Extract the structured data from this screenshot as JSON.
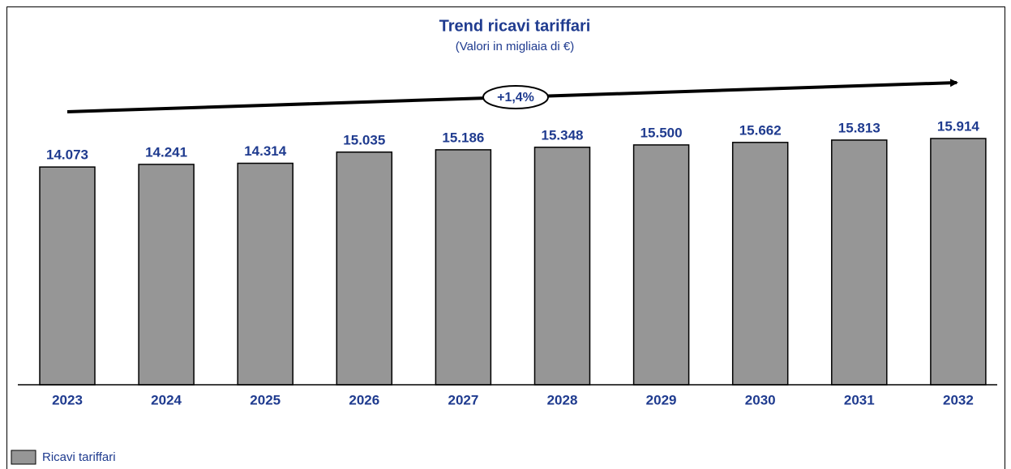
{
  "chart_data": {
    "type": "bar",
    "title": "Trend ricavi tariffari",
    "subtitle": "(Valori in migliaia di €)",
    "annotation": "+1,4%",
    "categories": [
      "2023",
      "2024",
      "2025",
      "2026",
      "2027",
      "2028",
      "2029",
      "2030",
      "2031",
      "2032"
    ],
    "series": [
      {
        "name": "Ricavi tariffari",
        "color": "#969696",
        "values": [
          14073,
          14241,
          14314,
          15035,
          15186,
          15348,
          15500,
          15662,
          15813,
          15914
        ],
        "value_labels": [
          "14.073",
          "14.241",
          "14.314",
          "15.035",
          "15.186",
          "15.348",
          "15.500",
          "15.662",
          "15.813",
          "15.914"
        ]
      }
    ],
    "legend": "bottom-left"
  }
}
